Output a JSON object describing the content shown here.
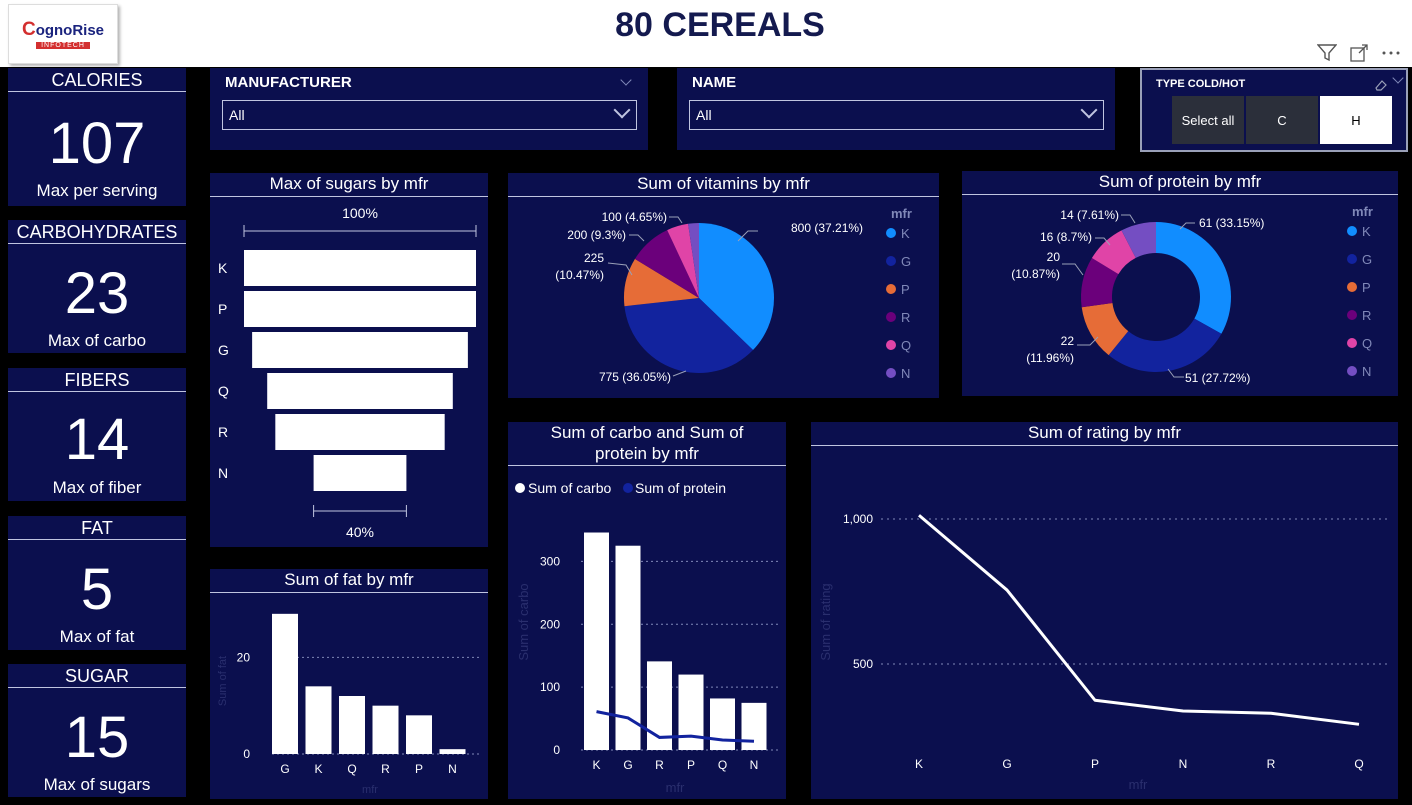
{
  "header": {
    "logo_main": "ognoRise",
    "logo_c": "C",
    "logo_sub": "INFOTECH",
    "title": "80 CEREALS"
  },
  "kpis": [
    {
      "title": "CALORIES",
      "value": "107",
      "sub": "Max per serving"
    },
    {
      "title": "CARBOHYDRATES",
      "value": "23",
      "sub": "Max of carbo"
    },
    {
      "title": "FIBERS",
      "value": "14",
      "sub": "Max of fiber"
    },
    {
      "title": "FAT",
      "value": "5",
      "sub": "Max of fat"
    },
    {
      "title": "SUGAR",
      "value": "15",
      "sub": "Max of sugars"
    }
  ],
  "slicers": {
    "manufacturer": {
      "title": "MANUFACTURER",
      "value": "All"
    },
    "name": {
      "title": "NAME",
      "value": "All"
    },
    "type": {
      "title": "TYPE COLD/HOT",
      "options": [
        "Select all",
        "C",
        "H"
      ],
      "selected": "H"
    }
  },
  "colors": {
    "K": "#118dff",
    "G": "#12239e",
    "P": "#e66c37",
    "R": "#6b007b",
    "Q": "#e044a7",
    "N": "#744ec2",
    "panel": "#0b0f4e"
  },
  "chart_data": [
    {
      "type": "funnel",
      "title": "Max of sugars by mfr",
      "categories": [
        "K",
        "P",
        "G",
        "Q",
        "R",
        "N"
      ],
      "values_pct": [
        100,
        100,
        93,
        80,
        73,
        40
      ],
      "top_label": "100%",
      "bottom_label": "40%"
    },
    {
      "type": "pie",
      "title": "Sum of vitamins by mfr",
      "legend_title": "mfr",
      "legend": [
        "K",
        "G",
        "P",
        "R",
        "Q",
        "N"
      ],
      "slices": [
        {
          "category": "K",
          "value": 800,
          "label": "800 (37.21%)"
        },
        {
          "category": "G",
          "value": 775,
          "label": "775 (36.05%)"
        },
        {
          "category": "P",
          "value": 225,
          "label_line1": "225",
          "label_line2": "(10.47%)"
        },
        {
          "category": "R",
          "value": 200,
          "label": "200 (9.3%)"
        },
        {
          "category": "Q",
          "value": 100,
          "label": "100 (4.65%)"
        },
        {
          "category": "N",
          "value": 50,
          "label": ""
        }
      ]
    },
    {
      "type": "donut",
      "title": "Sum of protein by mfr",
      "legend_title": "mfr",
      "legend": [
        "K",
        "G",
        "P",
        "R",
        "Q",
        "N"
      ],
      "slices": [
        {
          "category": "K",
          "value": 61,
          "label": "61 (33.15%)"
        },
        {
          "category": "G",
          "value": 51,
          "label": "51 (27.72%)"
        },
        {
          "category": "P",
          "value": 22,
          "label_line1": "22",
          "label_line2": "(11.96%)"
        },
        {
          "category": "R",
          "value": 20,
          "label_line1": "20",
          "label_line2": "(10.87%)"
        },
        {
          "category": "Q",
          "value": 16,
          "label": "16 (8.7%)"
        },
        {
          "category": "N",
          "value": 14,
          "label": "14 (7.61%)"
        }
      ]
    },
    {
      "type": "bar",
      "title": "Sum of fat by mfr",
      "categories": [
        "G",
        "K",
        "Q",
        "R",
        "P",
        "N"
      ],
      "values": [
        29,
        14,
        12,
        10,
        8,
        1
      ],
      "ylabel": "Sum of fat",
      "xlabel": "mfr",
      "yticks": [
        0,
        20
      ],
      "ylim": [
        0,
        30
      ]
    },
    {
      "type": "bar+line",
      "title_line1": "Sum of carbo and Sum of",
      "title_line2": "protein by mfr",
      "categories": [
        "K",
        "G",
        "R",
        "P",
        "Q",
        "N"
      ],
      "series": [
        {
          "name": "Sum of carbo",
          "type": "bar",
          "values": [
            346,
            325,
            141,
            120,
            82,
            75
          ]
        },
        {
          "name": "Sum of protein",
          "type": "line",
          "values": [
            61,
            51,
            20,
            22,
            16,
            14
          ]
        }
      ],
      "ylabel": "Sum of carbo",
      "xlabel": "mfr",
      "yticks": [
        0,
        100,
        200,
        300
      ],
      "ylim": [
        0,
        350
      ]
    },
    {
      "type": "line",
      "title": "Sum of rating by mfr",
      "categories": [
        "K",
        "G",
        "P",
        "N",
        "R",
        "Q"
      ],
      "values": [
        1013,
        755,
        375,
        338,
        330,
        292
      ],
      "ylabel": "Sum of rating",
      "xlabel": "mfr",
      "yticks": [
        500,
        1000
      ],
      "ytick_labels": [
        "500",
        "1,000"
      ],
      "ylim": [
        0,
        1050
      ]
    }
  ]
}
